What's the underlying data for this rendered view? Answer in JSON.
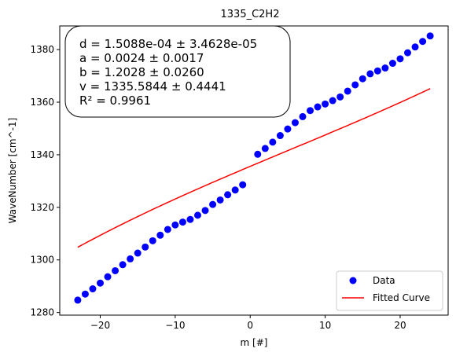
{
  "chart_data": {
    "type": "scatter",
    "title": "1335_C2H2",
    "xlabel": "m [#]",
    "ylabel": "WaveNumber [cm^-1]",
    "xlim": [
      -25.4,
      26.4
    ],
    "ylim": [
      1279.0,
      1389.0
    ],
    "xticks": [
      -20,
      -10,
      0,
      10,
      20
    ],
    "yticks": [
      1280,
      1300,
      1320,
      1340,
      1360,
      1380
    ],
    "grid": false,
    "legend_position": "lower-right",
    "annotation_lines": [
      "d = 1.5088e-04 ± 3.4628e-05",
      "a = 0.0024 ± 0.0017",
      "b = 1.2028 ± 0.0260",
      "v = 1335.5844 ± 0.4441",
      "R² = 0.9961"
    ],
    "series": [
      {
        "name": "Data",
        "kind": "scatter",
        "color": "#0000ff",
        "x": [
          -23,
          -22,
          -21,
          -20,
          -19,
          -18,
          -17,
          -16,
          -15,
          -14,
          -13,
          -12,
          -11,
          -10,
          -9,
          -8,
          -7,
          -6,
          -5,
          -4,
          -3,
          -2,
          -1,
          1,
          2,
          3,
          4,
          5,
          6,
          7,
          8,
          9,
          10,
          11,
          12,
          13,
          14,
          15,
          16,
          17,
          18,
          19,
          20,
          21,
          22,
          23,
          24
        ],
        "y": [
          1284.7,
          1287.0,
          1289.0,
          1291.2,
          1293.6,
          1295.9,
          1298.2,
          1300.4,
          1302.6,
          1304.9,
          1307.3,
          1309.4,
          1311.6,
          1313.3,
          1314.4,
          1315.4,
          1317.0,
          1318.8,
          1321.1,
          1322.8,
          1324.8,
          1326.6,
          1328.6,
          1340.2,
          1342.4,
          1344.8,
          1347.3,
          1349.8,
          1352.2,
          1354.5,
          1356.8,
          1358.2,
          1359.3,
          1360.6,
          1362.0,
          1364.2,
          1366.6,
          1368.9,
          1370.8,
          1371.9,
          1373.0,
          1374.8,
          1376.5,
          1378.8,
          1381.0,
          1383.1,
          1385.2
        ]
      },
      {
        "name": "Fitted Curve",
        "kind": "line",
        "color": "#ff0000",
        "model": {
          "d": 0.00015088,
          "a": 0.0024,
          "b": 1.2028,
          "v": 1335.5844
        },
        "x_range": [
          -23,
          24
        ]
      }
    ]
  }
}
